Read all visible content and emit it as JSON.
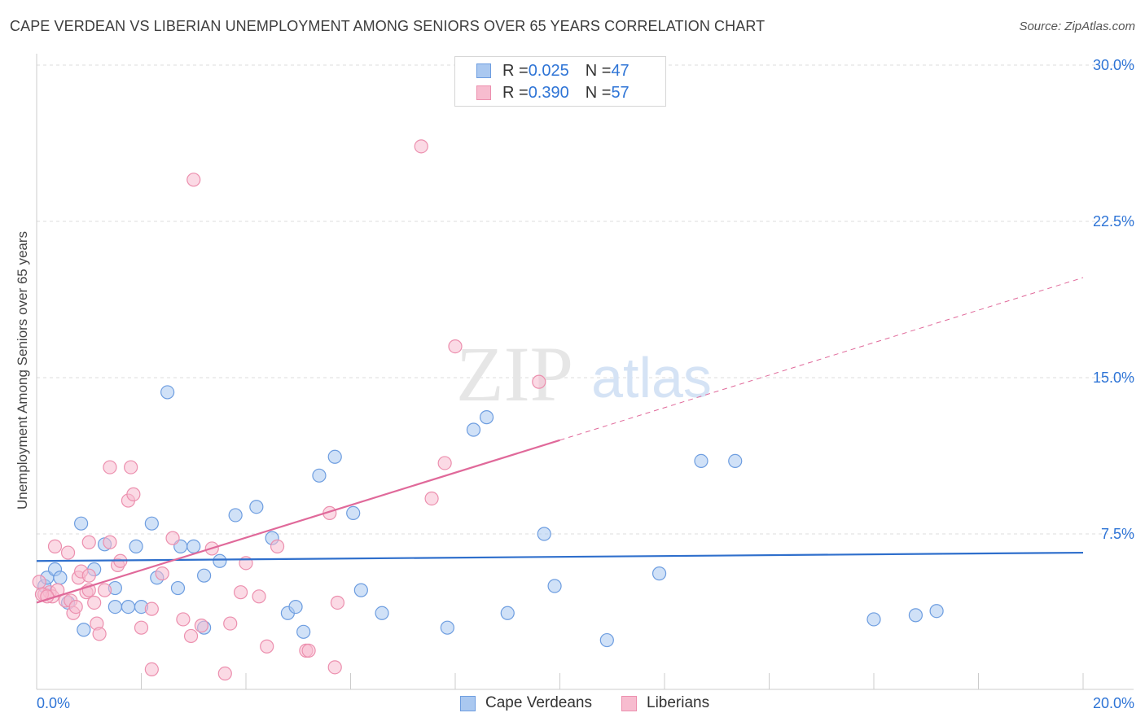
{
  "header": {
    "title": "CAPE VERDEAN VS LIBERIAN UNEMPLOYMENT AMONG SENIORS OVER 65 YEARS CORRELATION CHART",
    "source": "Source: ZipAtlas.com"
  },
  "watermark": {
    "zip": "ZIP",
    "atlas": "atlas"
  },
  "legend": {
    "rows": [
      {
        "r_label": "R = ",
        "r_value": "0.025",
        "n_label": "N = ",
        "n_value": "47"
      },
      {
        "r_label": "R = ",
        "r_value": "0.390",
        "n_label": "N = ",
        "n_value": "57"
      }
    ]
  },
  "colors": {
    "cape_fill": "#aac8f0",
    "cape_stroke": "#6d9de0",
    "cape_line": "#2f6fcc",
    "lib_fill": "#f7bccf",
    "lib_stroke": "#ec8fae",
    "lib_line": "#e0699a",
    "grid": "#dddddd",
    "axis_text": "#2e74d6"
  },
  "chart_data": {
    "type": "scatter",
    "title": "CAPE VERDEAN VS LIBERIAN UNEMPLOYMENT AMONG SENIORS OVER 65 YEARS CORRELATION CHART",
    "xlabel": "",
    "ylabel": "Unemployment Among Seniors over 65 years",
    "xlim": [
      0,
      20
    ],
    "ylim": [
      0,
      30
    ],
    "x_tick_labels": [
      "0.0%",
      "20.0%"
    ],
    "y_ticks": [
      7.5,
      15.0,
      22.5,
      30.0
    ],
    "y_tick_labels": [
      "7.5%",
      "15.0%",
      "22.5%",
      "30.0%"
    ],
    "grid": true,
    "legend_position": "top-center",
    "series": [
      {
        "name": "Cape Verdeans",
        "r": 0.025,
        "n": 47,
        "trend": {
          "x0": 0.0,
          "y0": 6.2,
          "x1": 20.0,
          "y1": 6.6,
          "dashed_from": null
        },
        "points": [
          [
            0.15,
            5.0
          ],
          [
            0.2,
            5.4
          ],
          [
            0.35,
            5.8
          ],
          [
            0.45,
            5.4
          ],
          [
            0.6,
            4.2
          ],
          [
            0.85,
            8.0
          ],
          [
            0.9,
            2.9
          ],
          [
            1.1,
            5.8
          ],
          [
            1.3,
            7.0
          ],
          [
            1.5,
            4.9
          ],
          [
            1.5,
            4.0
          ],
          [
            1.75,
            4.0
          ],
          [
            1.9,
            6.9
          ],
          [
            2.0,
            4.0
          ],
          [
            2.2,
            8.0
          ],
          [
            2.3,
            5.4
          ],
          [
            2.5,
            14.3
          ],
          [
            2.7,
            4.9
          ],
          [
            2.75,
            6.9
          ],
          [
            3.0,
            6.9
          ],
          [
            3.2,
            5.5
          ],
          [
            3.2,
            3.0
          ],
          [
            3.5,
            6.2
          ],
          [
            3.8,
            8.4
          ],
          [
            4.2,
            8.8
          ],
          [
            4.5,
            7.3
          ],
          [
            4.8,
            3.7
          ],
          [
            4.95,
            4.0
          ],
          [
            5.1,
            2.8
          ],
          [
            5.4,
            10.3
          ],
          [
            5.7,
            11.2
          ],
          [
            6.05,
            8.5
          ],
          [
            6.2,
            4.8
          ],
          [
            6.6,
            3.7
          ],
          [
            7.85,
            3.0
          ],
          [
            8.35,
            12.5
          ],
          [
            8.6,
            13.1
          ],
          [
            9.0,
            3.7
          ],
          [
            9.7,
            7.5
          ],
          [
            9.9,
            5.0
          ],
          [
            10.9,
            2.4
          ],
          [
            11.9,
            5.6
          ],
          [
            12.7,
            11.0
          ],
          [
            13.35,
            11.0
          ],
          [
            16.0,
            3.4
          ],
          [
            16.8,
            3.6
          ],
          [
            17.2,
            3.8
          ]
        ]
      },
      {
        "name": "Liberians",
        "r": 0.39,
        "n": 57,
        "trend": {
          "x0": 0.0,
          "y0": 4.2,
          "x1": 20.0,
          "y1": 19.8,
          "dashed_from": 10.0
        },
        "points": [
          [
            0.05,
            5.2
          ],
          [
            0.15,
            4.6
          ],
          [
            0.25,
            4.7
          ],
          [
            0.3,
            4.5
          ],
          [
            0.35,
            6.9
          ],
          [
            0.4,
            4.8
          ],
          [
            0.55,
            4.3
          ],
          [
            0.6,
            6.6
          ],
          [
            0.65,
            4.3
          ],
          [
            0.7,
            3.7
          ],
          [
            0.75,
            4.0
          ],
          [
            0.8,
            5.4
          ],
          [
            0.85,
            5.7
          ],
          [
            0.95,
            4.7
          ],
          [
            1.0,
            4.8
          ],
          [
            1.0,
            5.5
          ],
          [
            1.0,
            7.1
          ],
          [
            1.1,
            4.2
          ],
          [
            1.15,
            3.2
          ],
          [
            1.2,
            2.7
          ],
          [
            1.3,
            4.8
          ],
          [
            1.4,
            10.7
          ],
          [
            1.4,
            7.1
          ],
          [
            1.55,
            6.0
          ],
          [
            1.6,
            6.2
          ],
          [
            1.75,
            9.1
          ],
          [
            1.8,
            10.7
          ],
          [
            1.85,
            9.4
          ],
          [
            2.0,
            3.0
          ],
          [
            2.2,
            1.0
          ],
          [
            2.2,
            3.9
          ],
          [
            2.4,
            5.6
          ],
          [
            2.6,
            7.3
          ],
          [
            2.8,
            3.4
          ],
          [
            2.95,
            2.6
          ],
          [
            3.0,
            24.5
          ],
          [
            3.15,
            3.1
          ],
          [
            3.35,
            6.8
          ],
          [
            3.6,
            0.8
          ],
          [
            3.7,
            3.2
          ],
          [
            3.9,
            4.7
          ],
          [
            4.0,
            6.1
          ],
          [
            4.25,
            4.5
          ],
          [
            4.4,
            2.1
          ],
          [
            4.6,
            6.9
          ],
          [
            5.15,
            1.9
          ],
          [
            5.2,
            1.9
          ],
          [
            5.6,
            8.5
          ],
          [
            5.7,
            1.1
          ],
          [
            5.75,
            4.2
          ],
          [
            7.35,
            26.1
          ],
          [
            7.55,
            9.2
          ],
          [
            7.8,
            10.9
          ],
          [
            8.0,
            16.5
          ],
          [
            9.6,
            14.8
          ],
          [
            0.1,
            4.6
          ],
          [
            0.2,
            4.5
          ]
        ]
      }
    ]
  },
  "bottom_legend": {
    "cape": "Cape Verdeans",
    "lib": "Liberians"
  }
}
